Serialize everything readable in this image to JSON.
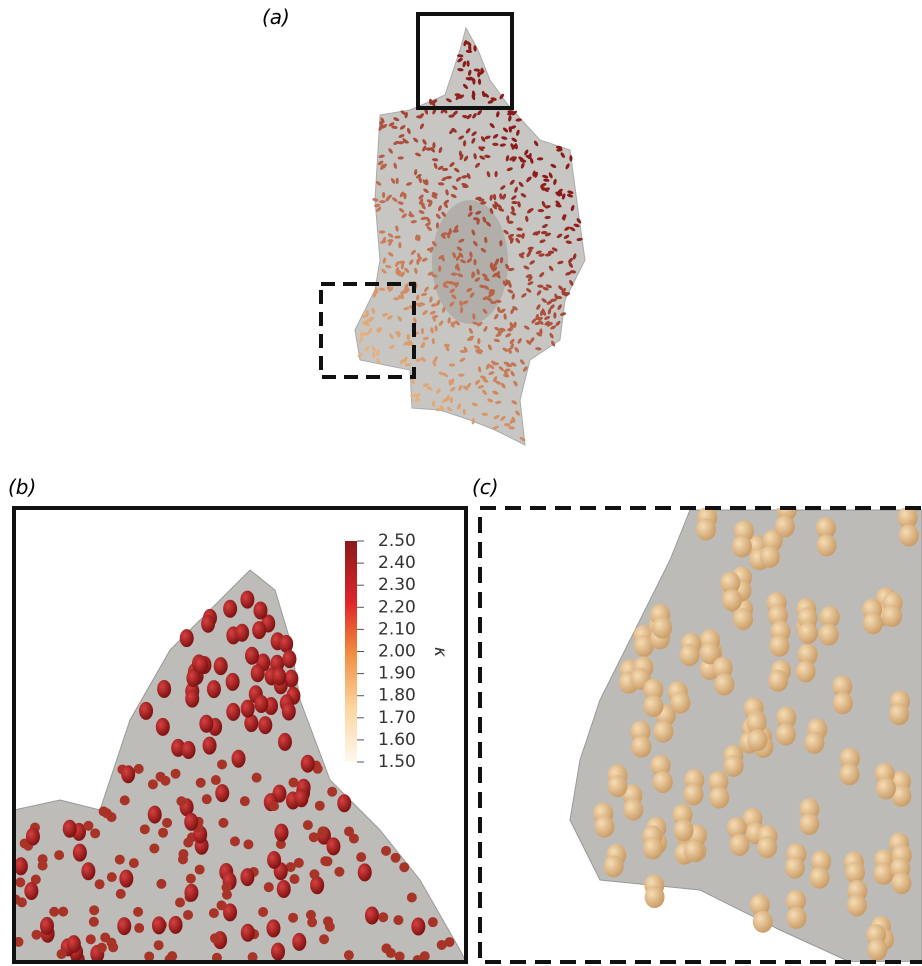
{
  "panels": [
    {
      "label": "(a)"
    },
    {
      "label": "(b)"
    },
    {
      "label": "(c)"
    }
  ],
  "colorbar": {
    "label": "κ",
    "lim": [
      1.5,
      2.5
    ],
    "ticks": [
      {
        "value": 2.5,
        "label": "2.50"
      },
      {
        "value": 2.4,
        "label": "2.40"
      },
      {
        "value": 2.3,
        "label": "2.30"
      },
      {
        "value": 2.2,
        "label": "2.20"
      },
      {
        "value": 2.1,
        "label": "2.10"
      },
      {
        "value": 2.0,
        "label": "2.00"
      },
      {
        "value": 1.9,
        "label": "1.90"
      },
      {
        "value": 1.8,
        "label": "1.80"
      },
      {
        "value": 1.7,
        "label": "1.70"
      },
      {
        "value": 1.6,
        "label": "1.60"
      },
      {
        "value": 1.5,
        "label": "1.50"
      }
    ]
  }
}
